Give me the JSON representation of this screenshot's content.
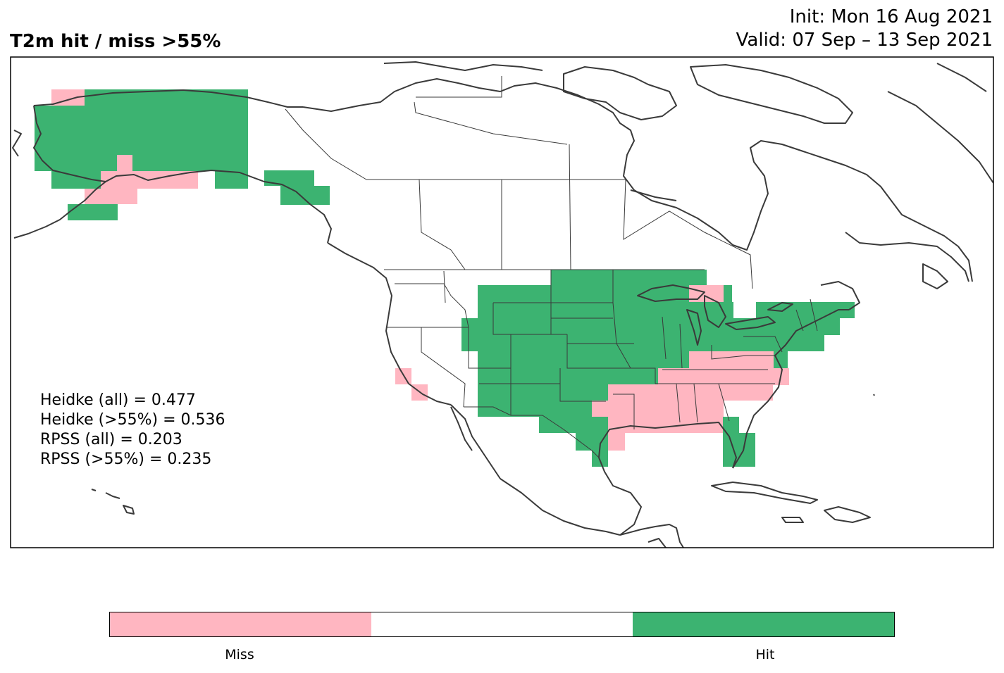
{
  "title": "T2m hit / miss  >55%",
  "init_line": "Init: Mon 16 Aug 2021",
  "valid_line": "Valid: 07 Sep – 13 Sep 2021",
  "stats": [
    "Heidke (all) = 0.477",
    "Heidke (>55%) = 0.536",
    "RPSS (all) = 0.203",
    "RPSS (>55%) = 0.235"
  ],
  "colorbar": {
    "segments": [
      {
        "color": "#ffb6c1",
        "label": "Miss"
      },
      {
        "color": "#ffffff",
        "label": ""
      },
      {
        "color": "#3cb371",
        "label": "Hit"
      }
    ]
  },
  "colors": {
    "hit": "#3cb371",
    "miss": "#ffb6c1",
    "coast": "#3a3a3a"
  }
}
